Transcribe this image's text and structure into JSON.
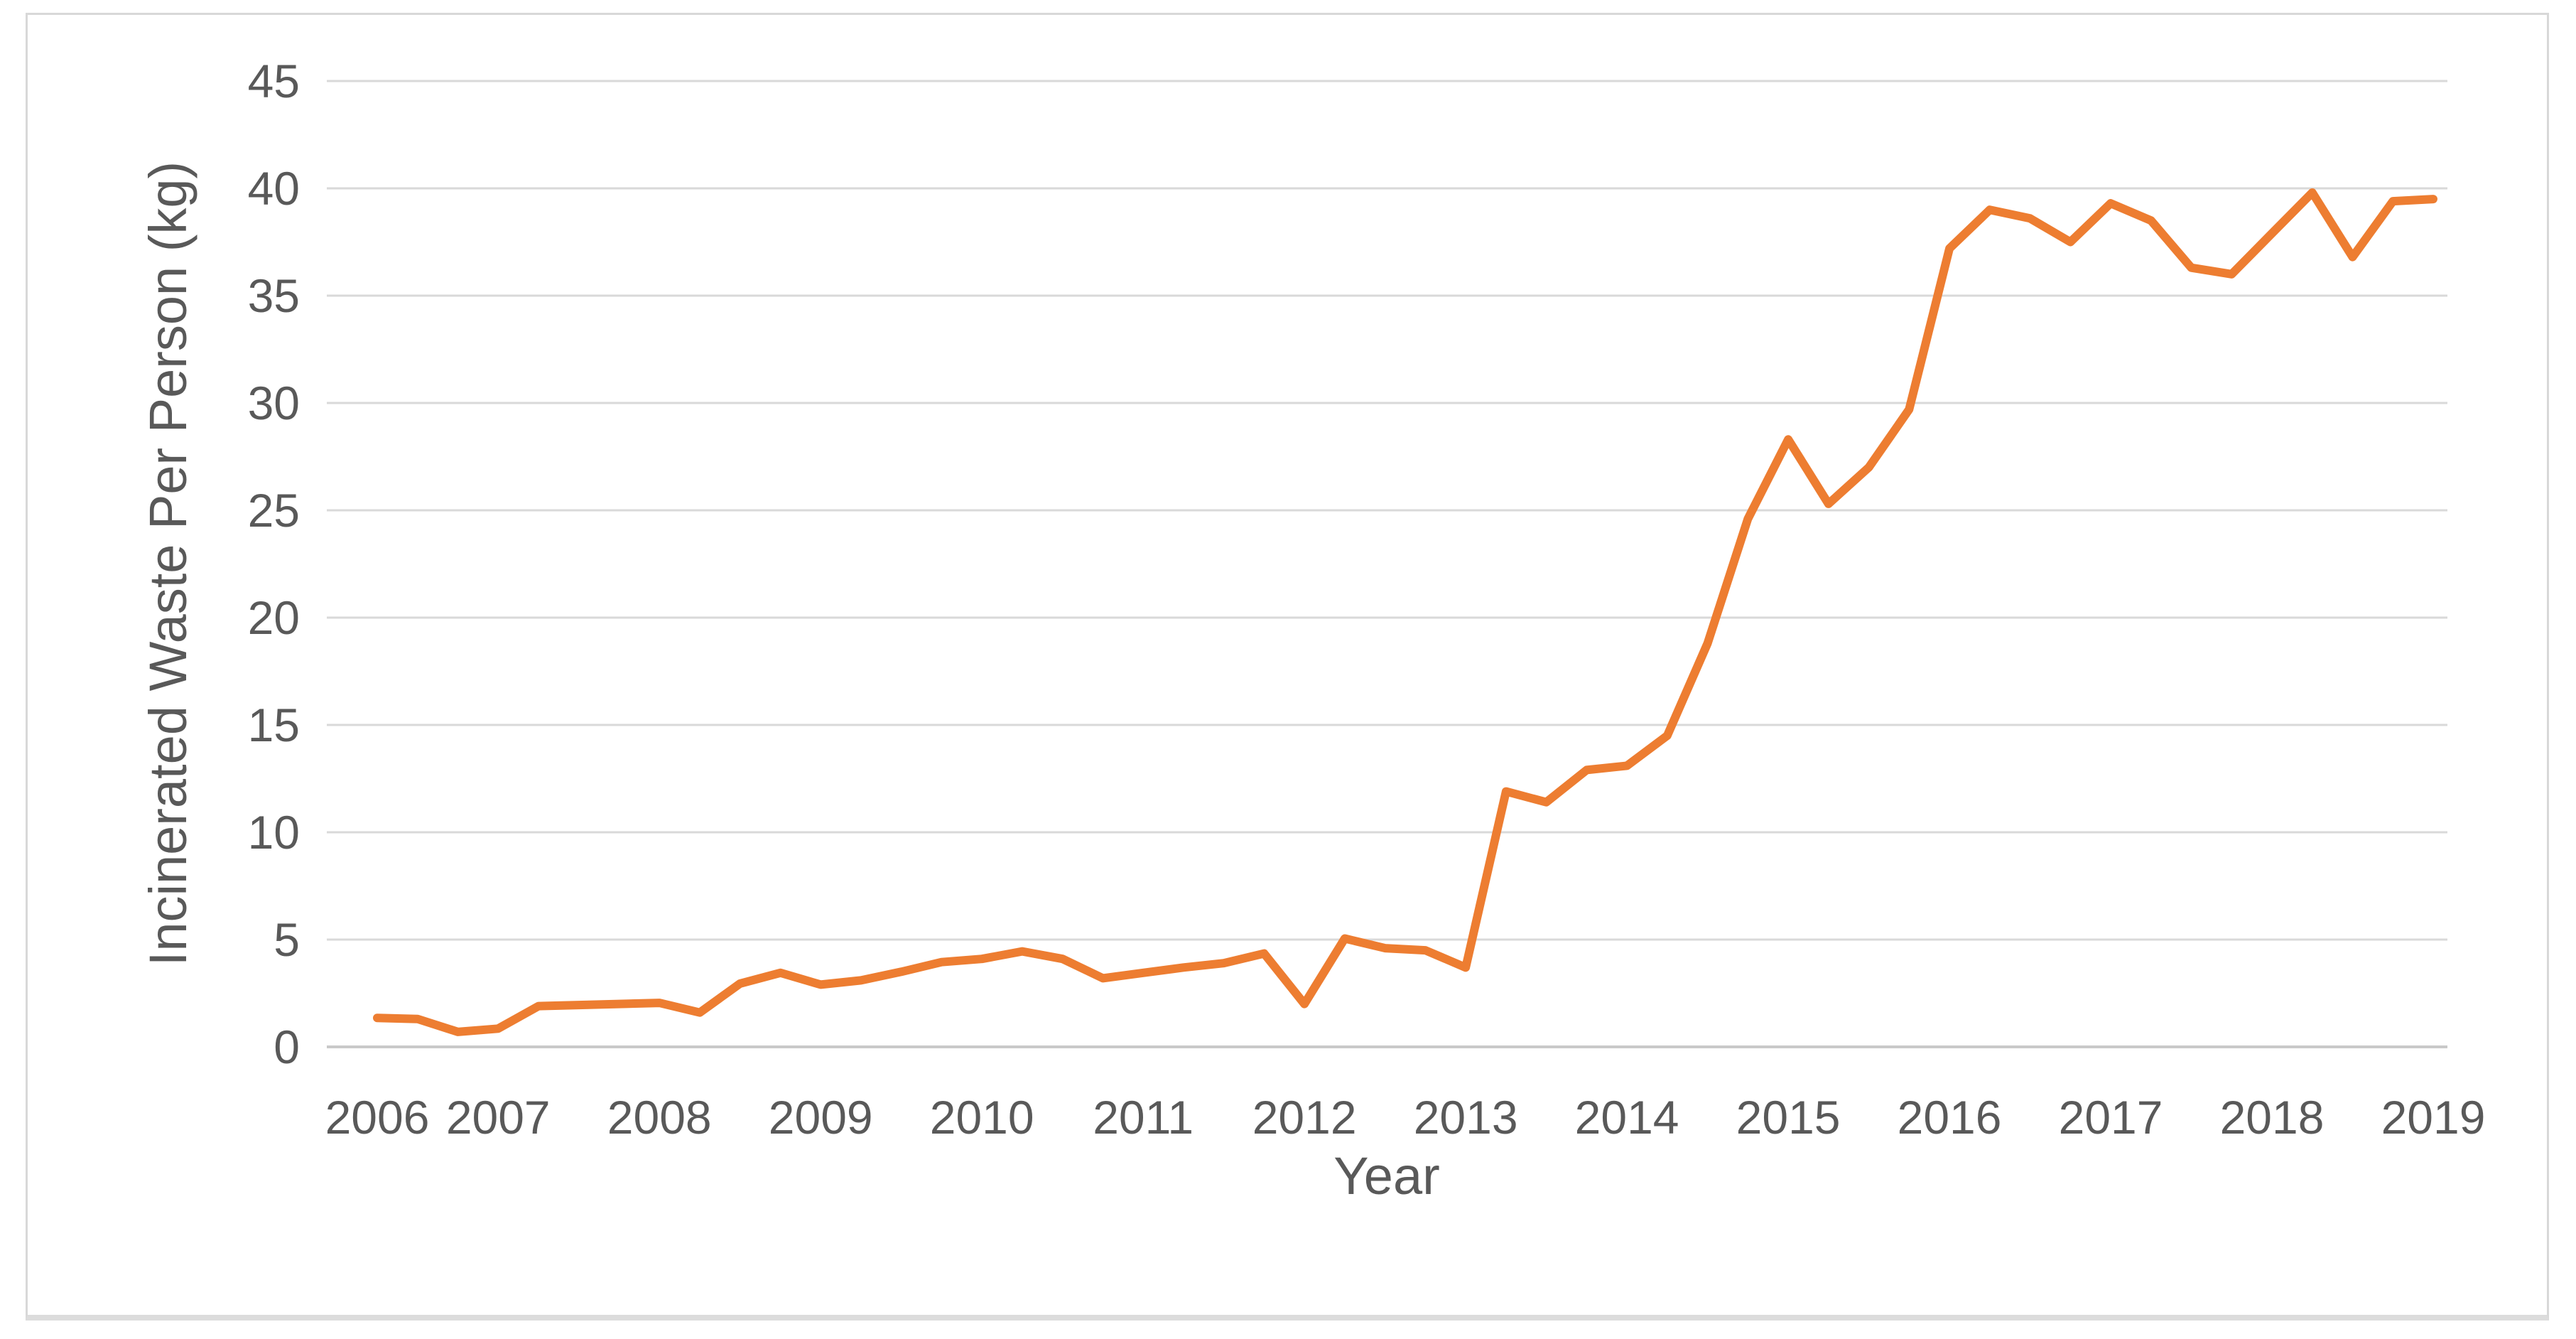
{
  "chart_data": {
    "type": "line",
    "title": "",
    "xlabel": "Year",
    "ylabel": "Incinerated Waste Per Person (kg)",
    "x_tick_labels": [
      "2006",
      "2007",
      "2008",
      "2009",
      "2010",
      "2011",
      "2012",
      "2013",
      "2014",
      "2015",
      "2016",
      "2017",
      "2018",
      "2019"
    ],
    "y_ticks": [
      0,
      5,
      10,
      15,
      20,
      25,
      30,
      35,
      40,
      45
    ],
    "ylim": [
      0,
      45
    ],
    "grid": "horizontal-only",
    "legend": "none",
    "series": [
      {
        "name": "Incinerated Waste Per Person (kg)",
        "cadence": "quarterly",
        "start_period": "2006-Q2",
        "end_period": "2019-Q1",
        "periods": [
          "2006-Q2",
          "2006-Q3",
          "2006-Q4",
          "2007-Q1",
          "2007-Q2",
          "2007-Q3",
          "2007-Q4",
          "2008-Q1",
          "2008-Q2",
          "2008-Q3",
          "2008-Q4",
          "2009-Q1",
          "2009-Q2",
          "2009-Q3",
          "2009-Q4",
          "2010-Q1",
          "2010-Q2",
          "2010-Q3",
          "2010-Q4",
          "2011-Q1",
          "2011-Q2",
          "2011-Q3",
          "2011-Q4",
          "2012-Q1",
          "2012-Q2",
          "2012-Q3",
          "2012-Q4",
          "2013-Q1",
          "2013-Q2",
          "2013-Q3",
          "2013-Q4",
          "2014-Q1",
          "2014-Q2",
          "2014-Q3",
          "2014-Q4",
          "2015-Q1",
          "2015-Q2",
          "2015-Q3",
          "2015-Q4",
          "2016-Q1",
          "2016-Q2",
          "2016-Q3",
          "2016-Q4",
          "2017-Q1",
          "2017-Q2",
          "2017-Q3",
          "2017-Q4",
          "2018-Q1",
          "2018-Q2",
          "2018-Q3",
          "2018-Q4",
          "2019-Q1"
        ],
        "values": [
          1.35,
          1.3,
          0.7,
          0.85,
          1.9,
          1.95,
          2.0,
          2.05,
          1.6,
          2.95,
          3.45,
          2.9,
          3.1,
          3.5,
          3.95,
          4.1,
          4.45,
          4.1,
          3.2,
          3.45,
          3.7,
          3.9,
          4.35,
          2.0,
          5.05,
          4.6,
          4.5,
          3.7,
          11.9,
          11.4,
          12.9,
          13.1,
          14.5,
          18.8,
          24.6,
          28.3,
          25.3,
          27.0,
          29.7,
          37.2,
          39.0,
          38.6,
          37.5,
          39.3,
          38.5,
          36.3,
          36.0,
          37.9,
          39.8,
          36.8,
          39.4,
          39.5
        ]
      }
    ]
  },
  "colors": {
    "line": "#ED7D31",
    "gridline": "#D9D9D9",
    "baseline": "#C9C9C9",
    "text": "#595959",
    "card_border": "#D8D8D8",
    "background": "#FFFFFF"
  }
}
